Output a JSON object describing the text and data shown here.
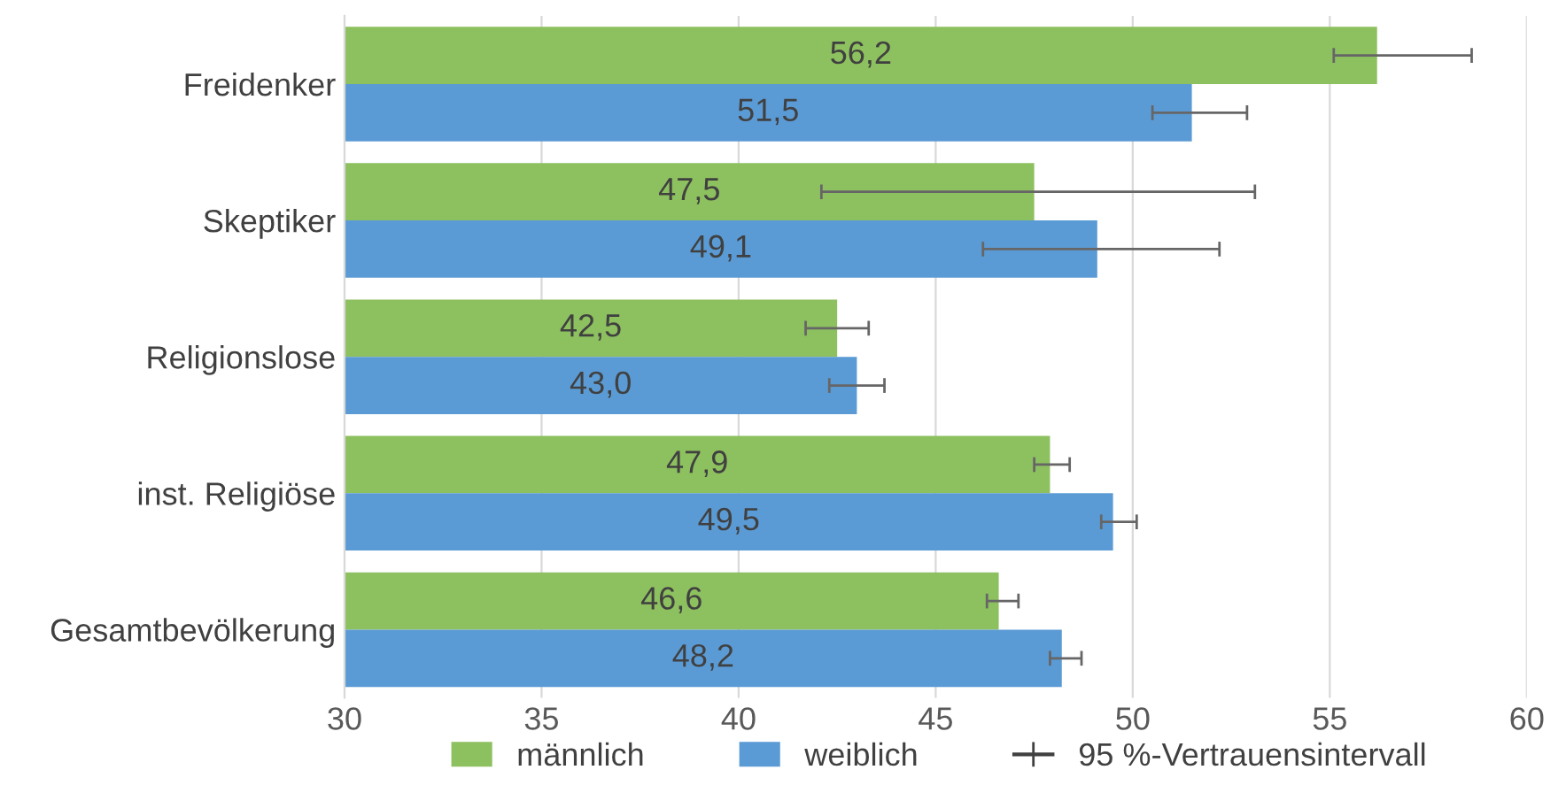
{
  "chart_data": {
    "type": "bar",
    "orientation": "horizontal",
    "categories": [
      "Freidenker",
      "Skeptiker",
      "Religionslose",
      "inst. Religiöse",
      "Gesamtbevölkerung"
    ],
    "series": [
      {
        "name": "männlich",
        "color": "#8dc05f",
        "values": [
          56.2,
          47.5,
          42.5,
          47.9,
          46.6
        ],
        "value_labels": [
          "56,2",
          "47,5",
          "42,5",
          "47,9",
          "46,6"
        ],
        "errors": [
          [
            55.1,
            58.6
          ],
          [
            42.1,
            53.1
          ],
          [
            41.7,
            43.3
          ],
          [
            47.5,
            48.4
          ],
          [
            46.3,
            47.1
          ]
        ]
      },
      {
        "name": "weiblich",
        "color": "#5b9bd5",
        "values": [
          51.5,
          49.1,
          43.0,
          49.5,
          48.2
        ],
        "value_labels": [
          "51,5",
          "49,1",
          "43,0",
          "49,5",
          "48,2"
        ],
        "errors": [
          [
            50.5,
            52.9
          ],
          [
            46.2,
            52.2
          ],
          [
            42.3,
            43.7
          ],
          [
            49.2,
            50.1
          ],
          [
            47.9,
            48.7
          ]
        ]
      }
    ],
    "xlim": [
      30,
      60
    ],
    "xticks": [
      30,
      35,
      40,
      45,
      50,
      55,
      60
    ],
    "grid": "x",
    "legend": "bottom",
    "annotations": [
      "95 %-Vertrauensintervall"
    ]
  }
}
